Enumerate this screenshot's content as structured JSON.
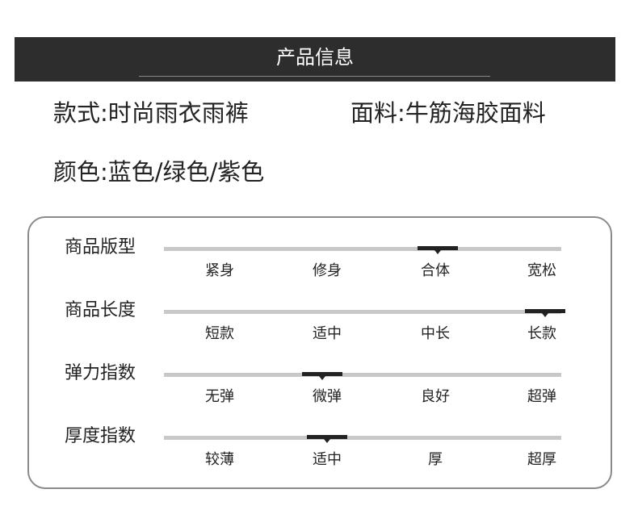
{
  "header": {
    "title": "产品信息"
  },
  "info": {
    "style": "款式:时尚雨衣雨裤",
    "fabric": "面料:牛筋海胶面料",
    "color": "颜色:蓝色/绿色/紫色"
  },
  "rows": [
    {
      "label": "商品版型",
      "options": [
        "紧身",
        "修身",
        "合体",
        "宽松"
      ],
      "selected": 2
    },
    {
      "label": "商品长度",
      "options": [
        "短款",
        "适中",
        "中长",
        "长款"
      ],
      "selected": 3
    },
    {
      "label": "弹力指数",
      "options": [
        "无弹",
        "微弹",
        "良好",
        "超弹"
      ],
      "selected": 1
    },
    {
      "label": "厚度指数",
      "options": [
        "较薄",
        "适中",
        "厚",
        "超厚"
      ],
      "selected": 1
    }
  ],
  "colors": {
    "header_bg": "#2d2d2d",
    "track": "#c8c8c8",
    "marker": "#222222",
    "border": "#8a8a8a"
  }
}
